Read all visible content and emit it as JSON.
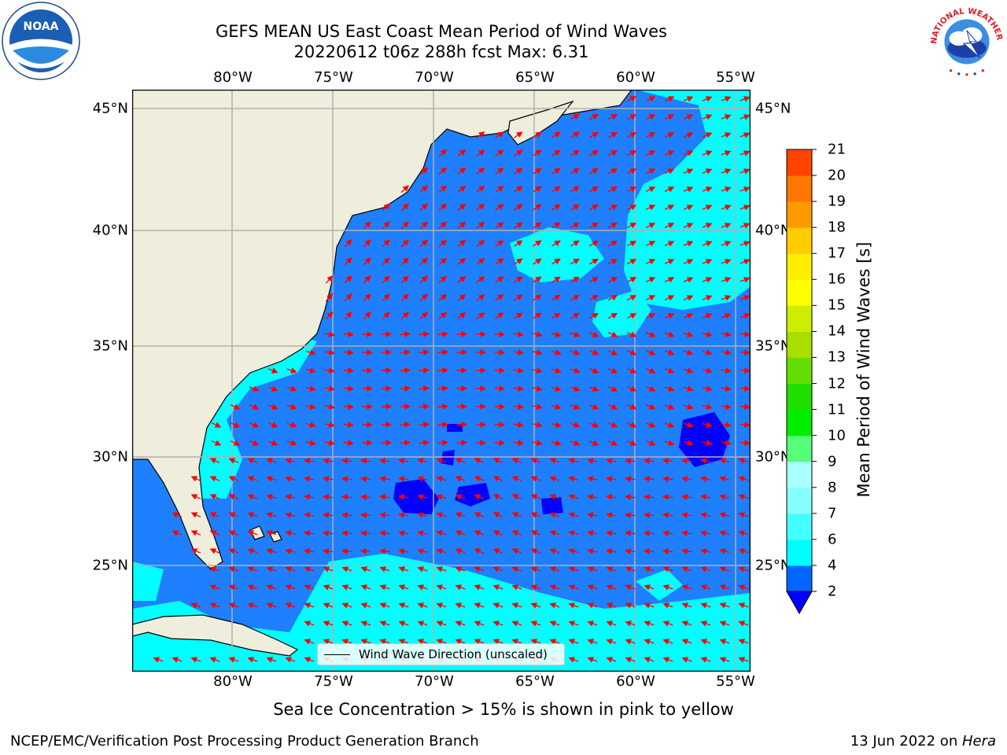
{
  "title": {
    "line1": "GEFS MEAN US East Coast Mean Period of Wind Waves",
    "line2": "20220612 t06z 288h fcst   Max: 6.31"
  },
  "logos": {
    "noaa_text": "NOAA",
    "noaa_ring_text": "NATIONAL OCEANIC AND ATMOSPHERIC ADMINISTRATION · U.S. DEPARTMENT OF COMMERCE",
    "nws_ring_text": "NATIONAL WEATHER SERVICE"
  },
  "map": {
    "lon_labels": [
      "80°W",
      "75°W",
      "70°W",
      "65°W",
      "60°W",
      "55°W"
    ],
    "lat_labels": [
      "45°N",
      "40°N",
      "35°N",
      "30°N",
      "25°N"
    ],
    "lon_range": [
      "85°W",
      "54.3°W"
    ],
    "lat_range": [
      "20.5°N",
      "45.8°N"
    ],
    "gridlines": true,
    "colors": {
      "land": "#efeedd",
      "band_2_4": "#1e7fff",
      "band_4_6": "#00ffff",
      "below_2": "#0000ff",
      "arrow": "#ff0000",
      "grid": "#b0b0b0"
    }
  },
  "colorbar": {
    "label": "Mean Period of Wind Waves [s]",
    "ticks": [
      "2",
      "4",
      "6",
      "7",
      "8",
      "9",
      "10",
      "11",
      "12",
      "13",
      "14",
      "15",
      "16",
      "17",
      "18",
      "19",
      "20",
      "21"
    ],
    "colors": [
      "#0066ff",
      "#00ffff",
      "#44ffff",
      "#88ffff",
      "#aaffff",
      "#55ff77",
      "#00ee00",
      "#22dd00",
      "#66dd00",
      "#aadd00",
      "#ccee00",
      "#ffff00",
      "#ffee00",
      "#ffcc00",
      "#ff9900",
      "#ff7700",
      "#ff4400",
      "#ff0000"
    ],
    "extend_color": "#0000ff"
  },
  "legend": {
    "label": "Wind Wave Direction (unscaled)"
  },
  "note": "Sea Ice Concentration > 15% is shown in pink to yellow",
  "footer": {
    "left": "NCEP/EMC/Verification Post Processing Product Generation Branch",
    "right_date": "13 Jun 2022 on ",
    "right_host": "Hera"
  }
}
